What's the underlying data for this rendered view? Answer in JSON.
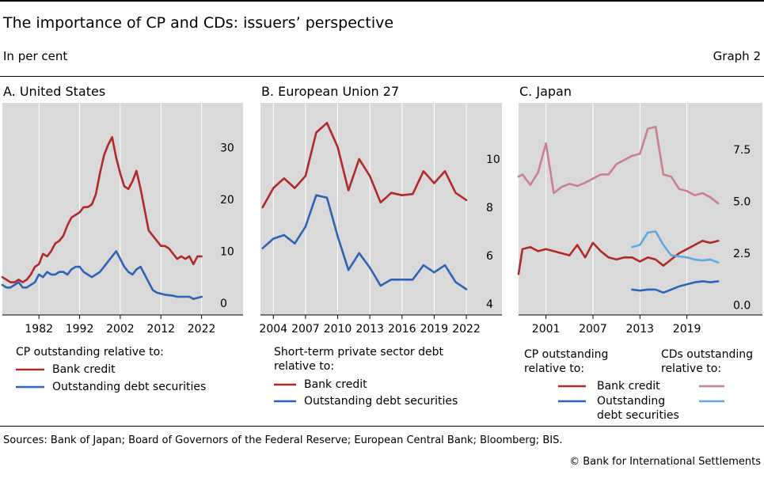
{
  "header": {
    "title": "The importance of CP and CDs: issuers’ perspective",
    "unit": "In per cent",
    "graph_number": "Graph 2"
  },
  "footer": {
    "sources": "Sources: Bank of Japan; Board of Governors of the Federal Reserve; European Central Bank; Bloomberg; BIS.",
    "copyright": "© Bank for International Settlements"
  },
  "colors": {
    "dark_red": "#b02a2a",
    "dark_blue": "#2e64b4",
    "pink": "#c9808f",
    "light_blue": "#5fa8e0",
    "panel_bg": "#d9d9d9"
  },
  "legends": {
    "A": {
      "heading": "CP outstanding relative to:",
      "items": [
        "Bank credit",
        "Outstanding debt securities"
      ]
    },
    "B": {
      "heading_line1": "Short-term private sector debt",
      "heading_line2": "relative to:",
      "items": [
        "Bank credit",
        "Outstanding debt securities"
      ]
    },
    "C": {
      "cp_heading_line1": "CP outstanding",
      "cp_heading_line2": "relative to:",
      "cd_heading_line1": "CDs outstanding",
      "cd_heading_line2": "relative to:",
      "item1": "Bank credit",
      "item2_line1": "Outstanding",
      "item2_line2": "debt securities"
    }
  },
  "chart_data": [
    {
      "type": "line",
      "title": "A. United States",
      "xlim": [
        1973,
        2025
      ],
      "ylim": [
        -2,
        38
      ],
      "x_ticks": [
        1982,
        1992,
        2002,
        2012,
        2022
      ],
      "x_tick_labels": [
        "1982",
        "1992",
        "2002",
        "2012",
        "2022"
      ],
      "y_ticks": [
        0,
        10,
        20,
        30
      ],
      "y_tick_labels": [
        "0",
        "10",
        "20",
        "30"
      ],
      "series": [
        {
          "name": "Bank credit",
          "color": "#b02a2a",
          "x": [
            1973,
            1974,
            1975,
            1976,
            1977,
            1978,
            1979,
            1980,
            1981,
            1982,
            1983,
            1984,
            1985,
            1986,
            1987,
            1988,
            1989,
            1990,
            1991,
            1992,
            1993,
            1994,
            1995,
            1996,
            1997,
            1998,
            1999,
            2000,
            2001,
            2002,
            2003,
            2004,
            2005,
            2006,
            2007,
            2008,
            2009,
            2010,
            2011,
            2012,
            2013,
            2014,
            2015,
            2016,
            2017,
            2018,
            2019,
            2020,
            2021,
            2022
          ],
          "y": [
            5,
            4.5,
            4,
            4,
            4.5,
            4,
            4.5,
            5.5,
            7,
            7.5,
            9.5,
            9,
            10,
            11.5,
            12,
            13,
            15,
            16.5,
            17,
            17.5,
            18.5,
            18.5,
            19,
            21,
            25,
            28.5,
            30.5,
            32,
            28,
            25,
            22.5,
            22,
            23.5,
            25.5,
            22,
            18,
            14,
            13,
            12,
            11,
            11,
            10.5,
            9.5,
            8.5,
            9,
            8.5,
            9,
            7.5,
            9,
            9
          ]
        },
        {
          "name": "Outstanding debt securities",
          "color": "#2e64b4",
          "x": [
            1973,
            1974,
            1975,
            1976,
            1977,
            1978,
            1979,
            1980,
            1981,
            1982,
            1983,
            1984,
            1985,
            1986,
            1987,
            1988,
            1989,
            1990,
            1991,
            1992,
            1993,
            1994,
            1995,
            1996,
            1997,
            1998,
            1999,
            2000,
            2001,
            2002,
            2003,
            2004,
            2005,
            2006,
            2007,
            2008,
            2009,
            2010,
            2011,
            2012,
            2013,
            2014,
            2015,
            2016,
            2017,
            2018,
            2019,
            2020,
            2021,
            2022
          ],
          "y": [
            3.5,
            3,
            3,
            3.5,
            4,
            3,
            3,
            3.5,
            4,
            5.5,
            5,
            6,
            5.5,
            5.5,
            6,
            6,
            5.5,
            6.5,
            7,
            7,
            6,
            5.5,
            5,
            5.5,
            6,
            7,
            8,
            9,
            10,
            8.5,
            7,
            6,
            5.5,
            6.5,
            7,
            5.5,
            4,
            2.5,
            2,
            1.8,
            1.6,
            1.5,
            1.4,
            1.2,
            1.2,
            1.2,
            1.2,
            0.8,
            1,
            1.2
          ]
        }
      ]
    },
    {
      "type": "line",
      "title": "B. European Union 27",
      "xlim": [
        2002.8,
        2023.4
      ],
      "ylim": [
        3.6,
        12.2
      ],
      "x_ticks": [
        2004,
        2007,
        2010,
        2013,
        2016,
        2019,
        2022
      ],
      "x_tick_labels": [
        "2004",
        "2007",
        "2010",
        "2013",
        "2016",
        "2019",
        "2022"
      ],
      "y_ticks": [
        4,
        6,
        8,
        10
      ],
      "y_tick_labels": [
        "4",
        "6",
        "8",
        "10"
      ],
      "series": [
        {
          "name": "Bank credit",
          "color": "#b02a2a",
          "x": [
            2003,
            2004,
            2005,
            2006,
            2007,
            2008,
            2009,
            2010,
            2011,
            2012,
            2013,
            2014,
            2015,
            2016,
            2017,
            2018,
            2019,
            2020,
            2021,
            2022
          ],
          "y": [
            8,
            8.8,
            9.2,
            8.8,
            9.3,
            11.1,
            11.5,
            10.5,
            8.7,
            10,
            9.3,
            8.2,
            8.6,
            8.5,
            8.55,
            9.5,
            9,
            9.5,
            8.6,
            8.3
          ]
        },
        {
          "name": "Outstanding debt securities",
          "color": "#2e64b4",
          "x": [
            2003,
            2004,
            2005,
            2006,
            2007,
            2008,
            2009,
            2010,
            2011,
            2012,
            2013,
            2014,
            2015,
            2016,
            2017,
            2018,
            2019,
            2020,
            2021,
            2022
          ],
          "y": [
            6.3,
            6.7,
            6.85,
            6.5,
            7.2,
            8.5,
            8.4,
            6.8,
            5.4,
            6.1,
            5.5,
            4.75,
            5,
            5,
            5,
            5.6,
            5.3,
            5.6,
            4.9,
            4.6
          ]
        }
      ]
    },
    {
      "type": "line",
      "title": "C. Japan",
      "xlim": [
        1997.5,
        2024.5
      ],
      "ylim": [
        -0.4,
        9.6
      ],
      "x_ticks": [
        2001,
        2007,
        2013,
        2019
      ],
      "x_tick_labels": [
        "2001",
        "2007",
        "2013",
        "2019"
      ],
      "y_ticks": [
        0,
        2.5,
        5,
        7.5
      ],
      "y_tick_labels": [
        "0.0",
        "2.5",
        "5.0",
        "7.5"
      ],
      "series": [
        {
          "name": "CP outstanding: Bank credit",
          "color": "#b02a2a",
          "x": [
            1997.5,
            1998,
            1999,
            2000,
            2001,
            2002,
            2003,
            2004,
            2005,
            2006,
            2007,
            2008,
            2009,
            2010,
            2011,
            2012,
            2013,
            2014,
            2015,
            2016,
            2017,
            2018,
            2019,
            2020,
            2021,
            2022,
            2023
          ],
          "y": [
            1.5,
            2.7,
            2.8,
            2.6,
            2.7,
            2.6,
            2.5,
            2.4,
            2.9,
            2.3,
            3,
            2.6,
            2.3,
            2.2,
            2.3,
            2.3,
            2.1,
            2.3,
            2.2,
            1.9,
            2.2,
            2.5,
            2.7,
            2.9,
            3.1,
            3,
            3.1
          ]
        },
        {
          "name": "CP outstanding: Outstanding debt securities",
          "color": "#2e64b4",
          "x": [
            2012,
            2013,
            2014,
            2015,
            2016,
            2017,
            2018,
            2019,
            2020,
            2021,
            2022,
            2023
          ],
          "y": [
            0.75,
            0.7,
            0.75,
            0.75,
            0.6,
            0.75,
            0.9,
            1,
            1.1,
            1.15,
            1.1,
            1.15
          ]
        },
        {
          "name": "CDs outstanding: Bank credit",
          "color": "#c9808f",
          "x": [
            1997.5,
            1998,
            1999,
            2000,
            2001,
            2002,
            2003,
            2004,
            2005,
            2006,
            2007,
            2008,
            2009,
            2010,
            2011,
            2012,
            2013,
            2014,
            2015,
            2016,
            2017,
            2018,
            2019,
            2020,
            2021,
            2022,
            2023
          ],
          "y": [
            6.2,
            6.3,
            5.8,
            6.4,
            7.8,
            5.4,
            5.7,
            5.85,
            5.75,
            5.9,
            6.1,
            6.3,
            6.3,
            6.8,
            7,
            7.2,
            7.3,
            8.5,
            8.6,
            6.3,
            6.2,
            5.6,
            5.5,
            5.3,
            5.4,
            5.2,
            4.9
          ]
        },
        {
          "name": "CDs outstanding: Outstanding debt securities",
          "color": "#5fa8e0",
          "x": [
            2012,
            2013,
            2014,
            2015,
            2016,
            2017,
            2018,
            2019,
            2020,
            2021,
            2022,
            2023
          ],
          "y": [
            2.8,
            2.9,
            3.5,
            3.55,
            2.9,
            2.4,
            2.35,
            2.3,
            2.2,
            2.15,
            2.2,
            2.05
          ]
        }
      ]
    }
  ]
}
